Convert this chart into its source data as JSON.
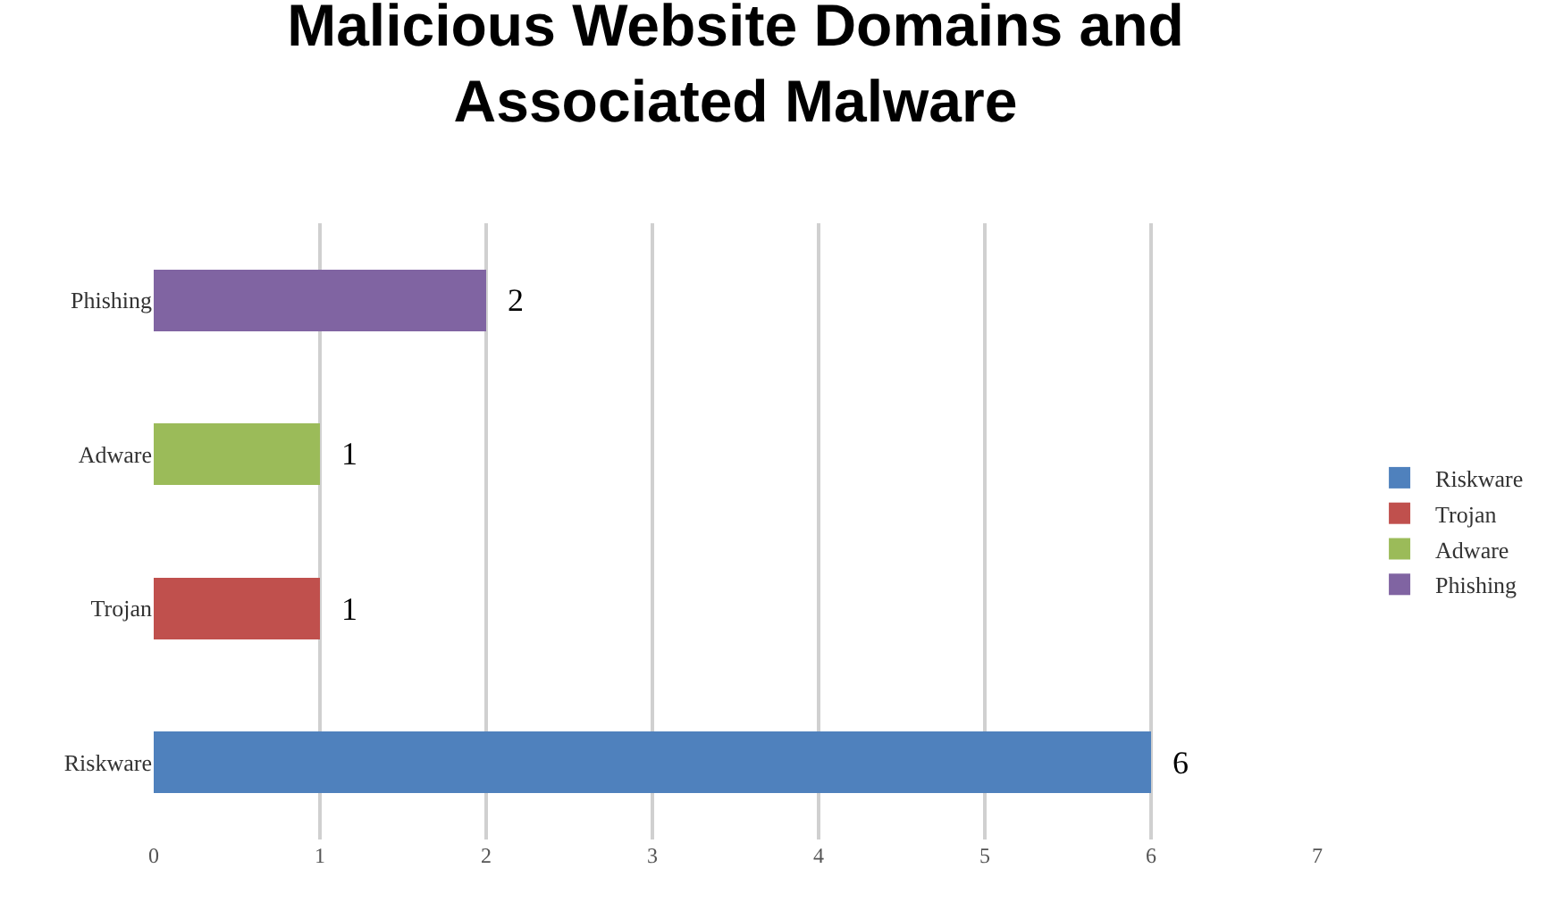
{
  "chart_data": {
    "type": "bar",
    "orientation": "horizontal",
    "stacked": true,
    "title": "Malicious Website Domains and\nAssociated Malware",
    "categories": [
      "Phishing",
      "Adware",
      "Trojan",
      "Riskware"
    ],
    "series": [
      {
        "name": "Riskware",
        "color": "#4f81bd",
        "values": [
          null,
          null,
          null,
          6
        ]
      },
      {
        "name": "Trojan",
        "color": "#c0504d",
        "values": [
          null,
          null,
          1,
          null
        ]
      },
      {
        "name": "Adware",
        "color": "#9bbb59",
        "values": [
          null,
          1,
          null,
          null
        ]
      },
      {
        "name": "Phishing",
        "color": "#8064a2",
        "values": [
          2,
          null,
          null,
          null
        ]
      }
    ],
    "xlim": [
      0,
      7
    ],
    "xticks": [
      0,
      1,
      2,
      3,
      4,
      5,
      6,
      7
    ],
    "grid": "x",
    "legend": "right",
    "data_labels": true
  }
}
